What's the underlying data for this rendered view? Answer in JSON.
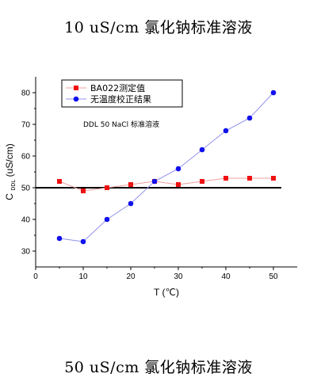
{
  "header": {
    "title": "10 uS/cm 氯化钠标准溶液"
  },
  "footer": {
    "title": "50 uS/cm 氯化钠标准溶液"
  },
  "colors": {
    "series_red": "#ee1111",
    "series_blue": "#1111ee",
    "line_red": "#f0a0a0",
    "line_blue": "#9090ee"
  },
  "chart_data": {
    "type": "line",
    "annotation": "DDL 50 NaCl 标准溶液",
    "xlabel": "T (℃)",
    "ylabel_main": "C",
    "ylabel_sub": "DDL",
    "ylabel_tail": " (uS/cm)",
    "xlim": [
      0,
      55
    ],
    "ylim": [
      25,
      85
    ],
    "xticks": [
      0,
      10,
      20,
      30,
      40,
      50
    ],
    "yticks": [
      30,
      40,
      50,
      60,
      70,
      80
    ],
    "reference_line": 50,
    "legend_position": "top-left",
    "series": [
      {
        "name": "BA022测定值",
        "marker": "square",
        "color": "#ee1111",
        "x": [
          5,
          10,
          15,
          20,
          25,
          30,
          35,
          40,
          45,
          50
        ],
        "values": [
          52,
          49,
          50,
          51,
          52,
          51,
          52,
          53,
          53,
          53
        ]
      },
      {
        "name": "无温度校正结果",
        "marker": "circle",
        "color": "#1111ee",
        "x": [
          5,
          10,
          15,
          20,
          25,
          30,
          35,
          40,
          45,
          50
        ],
        "values": [
          34,
          33,
          40,
          45,
          52,
          56,
          62,
          68,
          72,
          80
        ]
      }
    ]
  }
}
